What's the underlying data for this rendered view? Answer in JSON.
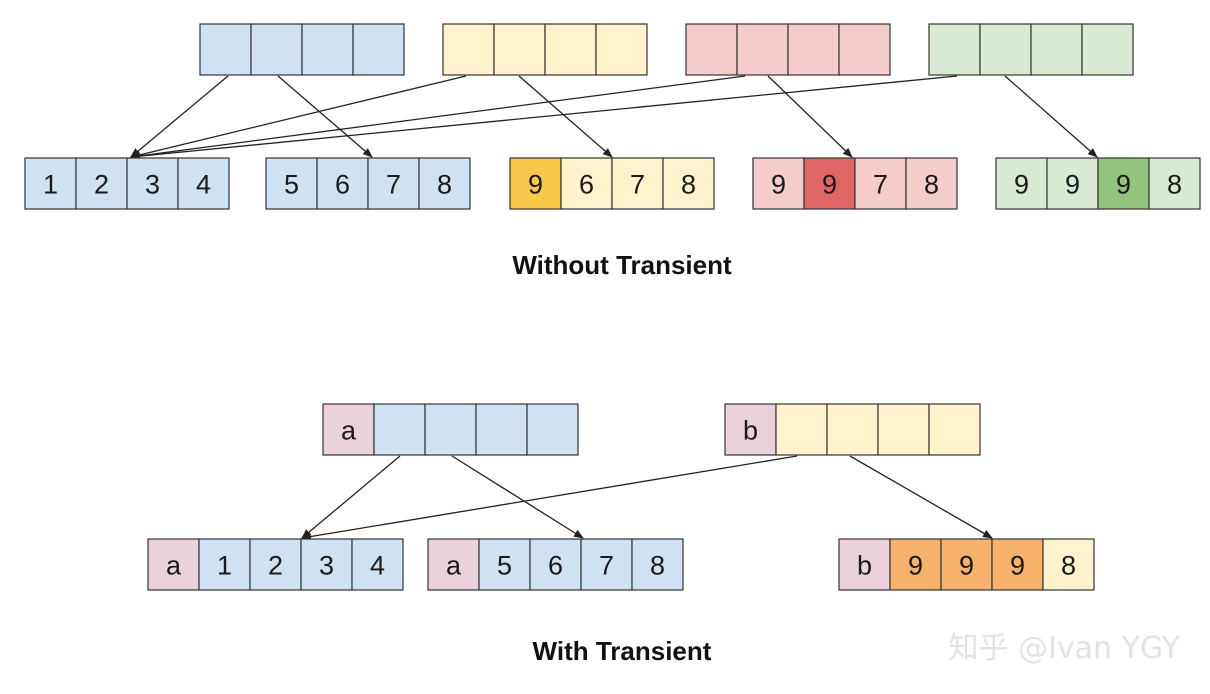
{
  "colors": {
    "blue": "#cfe2f3",
    "yellow": "#fff2cc",
    "yellow_dark": "#f7c94b",
    "red": "#f4cccc",
    "red_dark": "#e06666",
    "green": "#d9ead3",
    "green_dark": "#93c47d",
    "pink": "#ead1dc",
    "orange": "#f6b26b",
    "border": "#333333"
  },
  "without_transient": {
    "caption": "Without Transient",
    "parent_nodes": [
      {
        "name": "blue-parent-node",
        "color": "blue",
        "cells": [
          "",
          "",
          "",
          ""
        ]
      },
      {
        "name": "yellow-parent-node",
        "color": "yellow",
        "cells": [
          "",
          "",
          "",
          ""
        ]
      },
      {
        "name": "red-parent-node",
        "color": "red",
        "cells": [
          "",
          "",
          "",
          ""
        ]
      },
      {
        "name": "green-parent-node",
        "color": "green",
        "cells": [
          "",
          "",
          "",
          ""
        ]
      }
    ],
    "leaf_nodes": [
      {
        "name": "leaf-1-2-3-4",
        "cells": [
          {
            "v": "1",
            "c": "blue"
          },
          {
            "v": "2",
            "c": "blue"
          },
          {
            "v": "3",
            "c": "blue"
          },
          {
            "v": "4",
            "c": "blue"
          }
        ]
      },
      {
        "name": "leaf-5-6-7-8",
        "cells": [
          {
            "v": "5",
            "c": "blue"
          },
          {
            "v": "6",
            "c": "blue"
          },
          {
            "v": "7",
            "c": "blue"
          },
          {
            "v": "8",
            "c": "blue"
          }
        ]
      },
      {
        "name": "leaf-9-6-7-8",
        "cells": [
          {
            "v": "9",
            "c": "yellow_dark"
          },
          {
            "v": "6",
            "c": "yellow"
          },
          {
            "v": "7",
            "c": "yellow"
          },
          {
            "v": "8",
            "c": "yellow"
          }
        ]
      },
      {
        "name": "leaf-9-9-7-8",
        "cells": [
          {
            "v": "9",
            "c": "red"
          },
          {
            "v": "9",
            "c": "red_dark"
          },
          {
            "v": "7",
            "c": "red"
          },
          {
            "v": "8",
            "c": "red"
          }
        ]
      },
      {
        "name": "leaf-9-9-9-8",
        "cells": [
          {
            "v": "9",
            "c": "green"
          },
          {
            "v": "9",
            "c": "green"
          },
          {
            "v": "9",
            "c": "green_dark"
          },
          {
            "v": "8",
            "c": "green"
          }
        ]
      }
    ]
  },
  "with_transient": {
    "caption": "With Transient",
    "parent_nodes": [
      {
        "name": "transient-parent-a",
        "cells": [
          {
            "v": "a",
            "c": "pink"
          },
          {
            "v": "",
            "c": "blue"
          },
          {
            "v": "",
            "c": "blue"
          },
          {
            "v": "",
            "c": "blue"
          },
          {
            "v": "",
            "c": "blue"
          }
        ]
      },
      {
        "name": "transient-parent-b",
        "cells": [
          {
            "v": "b",
            "c": "pink"
          },
          {
            "v": "",
            "c": "yellow"
          },
          {
            "v": "",
            "c": "yellow"
          },
          {
            "v": "",
            "c": "yellow"
          },
          {
            "v": "",
            "c": "yellow"
          }
        ]
      }
    ],
    "leaf_nodes": [
      {
        "name": "transient-leaf-a-1-2-3-4",
        "cells": [
          {
            "v": "a",
            "c": "pink"
          },
          {
            "v": "1",
            "c": "blue"
          },
          {
            "v": "2",
            "c": "blue"
          },
          {
            "v": "3",
            "c": "blue"
          },
          {
            "v": "4",
            "c": "blue"
          }
        ]
      },
      {
        "name": "transient-leaf-a-5-6-7-8",
        "cells": [
          {
            "v": "a",
            "c": "pink"
          },
          {
            "v": "5",
            "c": "blue"
          },
          {
            "v": "6",
            "c": "blue"
          },
          {
            "v": "7",
            "c": "blue"
          },
          {
            "v": "8",
            "c": "blue"
          }
        ]
      },
      {
        "name": "transient-leaf-b-9-9-9-8",
        "cells": [
          {
            "v": "b",
            "c": "pink"
          },
          {
            "v": "9",
            "c": "orange"
          },
          {
            "v": "9",
            "c": "orange"
          },
          {
            "v": "9",
            "c": "orange"
          },
          {
            "v": "8",
            "c": "yellow"
          }
        ]
      }
    ]
  },
  "watermark": "知乎 @Ivan YGY"
}
